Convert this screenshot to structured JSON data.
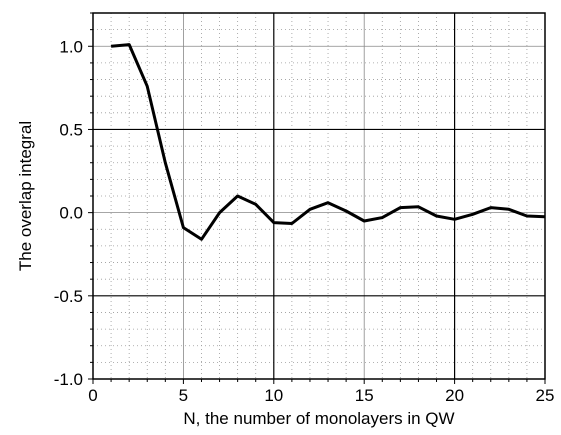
{
  "chart_data": {
    "type": "line",
    "title": "",
    "xlabel": "N, the number of monolayers in QW",
    "ylabel": "The overlap integral",
    "xlim": [
      0,
      25
    ],
    "ylim": [
      -1.0,
      1.2
    ],
    "x_ticks": [
      0,
      5,
      10,
      15,
      20,
      25
    ],
    "x_tick_labels": [
      "0",
      "5",
      "10",
      "15",
      "20",
      "25"
    ],
    "y_ticks": [
      -1.0,
      -0.5,
      0.0,
      0.5,
      1.0
    ],
    "y_tick_labels": [
      "-1.0",
      "-0.5",
      "0.0",
      "0.5",
      "1.0"
    ],
    "grid": true,
    "grid_minor": true,
    "series": [
      {
        "x": [
          1,
          2,
          3,
          4,
          5,
          6,
          7,
          8,
          9,
          10,
          11,
          12,
          13,
          14,
          15,
          16,
          17,
          18,
          19,
          20,
          21,
          22,
          23,
          24,
          25
        ],
        "values": [
          1.0,
          1.01,
          0.76,
          0.3,
          -0.09,
          -0.16,
          0.0,
          0.1,
          0.05,
          -0.06,
          -0.065,
          0.02,
          0.06,
          0.01,
          -0.05,
          -0.03,
          0.03,
          0.035,
          -0.02,
          -0.04,
          -0.01,
          0.03,
          0.02,
          -0.02,
          -0.025
        ],
        "color": "#000000"
      }
    ]
  }
}
